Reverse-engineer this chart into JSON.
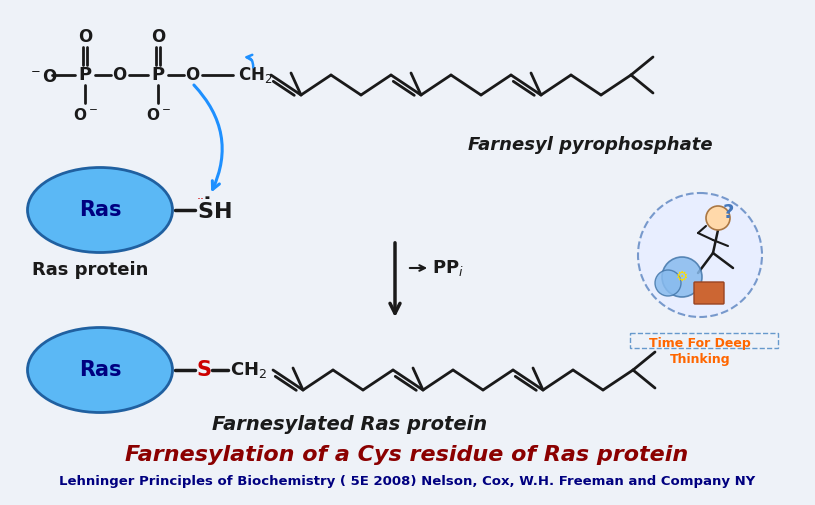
{
  "title": "Farnesylation of a Cys residue of Ras protein",
  "subtitle": "Lehninger Principles of Biochemistry ( 5E 2008) Nelson, Cox, W.H. Freeman and Company NY",
  "title_color": "#8B0000",
  "subtitle_color": "#000080",
  "bg_color": "#eef2f8",
  "farnesyl_label": "Farnesyl pyrophosphate",
  "ras_label_top": "Ras protein",
  "ras_label_bottom": "Farnesylated Ras protein",
  "ras_fill": "#5BB8F5",
  "ras_edge": "#2060A0",
  "arrow_color": "#1E90FF",
  "chain_color": "#1a1a1a",
  "s_color": "#CC0000",
  "dot_color": "#CC0000"
}
